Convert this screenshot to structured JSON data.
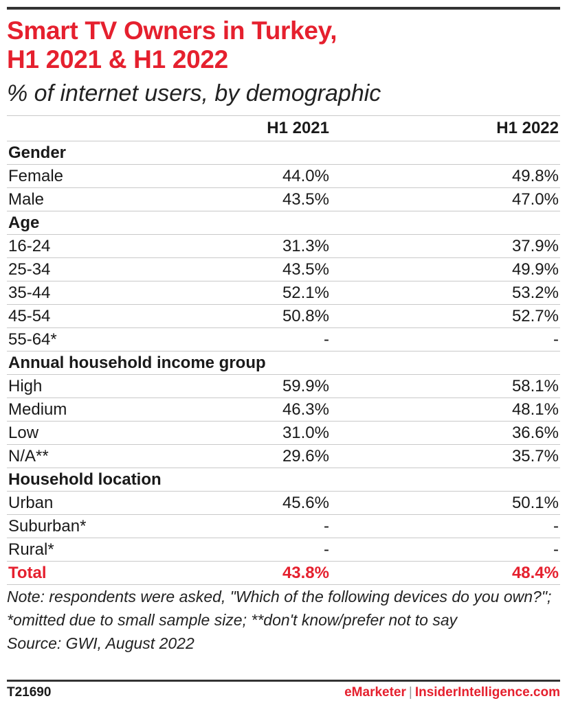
{
  "chart_data": {
    "type": "table",
    "title_line1": "Smart TV Owners in Turkey,",
    "title_line2": "H1 2021 & H1 2022",
    "subtitle": "% of internet users, by demographic",
    "columns": [
      "",
      "H1 2021",
      "H1 2022"
    ],
    "sections": [
      {
        "name": "Gender",
        "rows": [
          {
            "label": "Female",
            "h1_2021": "44.0%",
            "h1_2022": "49.8%"
          },
          {
            "label": "Male",
            "h1_2021": "43.5%",
            "h1_2022": "47.0%"
          }
        ]
      },
      {
        "name": "Age",
        "rows": [
          {
            "label": "16-24",
            "h1_2021": "31.3%",
            "h1_2022": "37.9%"
          },
          {
            "label": "25-34",
            "h1_2021": "43.5%",
            "h1_2022": "49.9%"
          },
          {
            "label": "35-44",
            "h1_2021": "52.1%",
            "h1_2022": "53.2%"
          },
          {
            "label": "45-54",
            "h1_2021": "50.8%",
            "h1_2022": "52.7%"
          },
          {
            "label": "55-64*",
            "h1_2021": "-",
            "h1_2022": "-"
          }
        ]
      },
      {
        "name": "Annual household income group",
        "rows": [
          {
            "label": "High",
            "h1_2021": "59.9%",
            "h1_2022": "58.1%"
          },
          {
            "label": "Medium",
            "h1_2021": "46.3%",
            "h1_2022": "48.1%"
          },
          {
            "label": "Low",
            "h1_2021": "31.0%",
            "h1_2022": "36.6%"
          },
          {
            "label": "N/A**",
            "h1_2021": "29.6%",
            "h1_2022": "35.7%"
          }
        ]
      },
      {
        "name": "Household location",
        "rows": [
          {
            "label": "Urban",
            "h1_2021": "45.6%",
            "h1_2022": "50.1%"
          },
          {
            "label": "Suburban*",
            "h1_2021": "-",
            "h1_2022": "-"
          },
          {
            "label": "Rural*",
            "h1_2021": "-",
            "h1_2022": "-"
          }
        ]
      }
    ],
    "total": {
      "label": "Total",
      "h1_2021": "43.8%",
      "h1_2022": "48.4%"
    }
  },
  "note": "Note: respondents were asked, \"Which of the following devices do you own?\"; *omitted due to small sample size; **don't know/prefer not to say",
  "source": "Source: GWI, August 2022",
  "footer": {
    "chart_id": "T21690",
    "brand1": "eMarketer",
    "separator": "|",
    "brand2": "InsiderIntelligence.com"
  },
  "colors": {
    "accent": "#e5202e",
    "text": "#1a1a1a",
    "rule": "#333333"
  }
}
